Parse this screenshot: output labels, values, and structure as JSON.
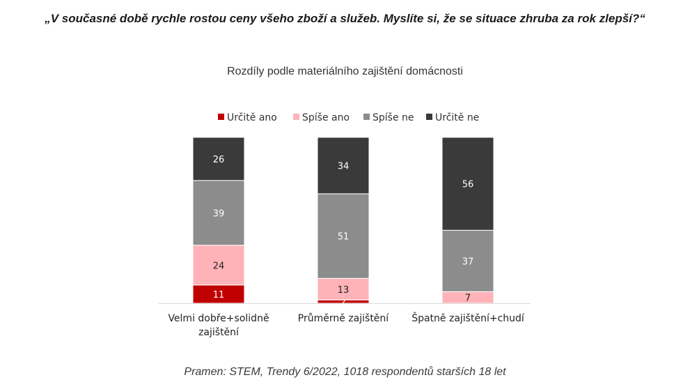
{
  "header": {
    "title": "„V současné době rychle rostou ceny všeho zboží a služeb. Myslíte si, že se situace zhruba za rok zlepší?“",
    "subtitle": "Rozdíly podle materiálního zajištění domácnosti"
  },
  "footer": {
    "source": "Pramen: STEM, Trendy 6/2022, 1018 respondentů starších 18 let"
  },
  "chart_data": {
    "type": "bar",
    "stacked": true,
    "categories": [
      [
        "Velmi dobře+solidně",
        "zajištění"
      ],
      [
        "Průměrně zajištění"
      ],
      [
        "Špatně zajištění+chudí"
      ]
    ],
    "series": [
      {
        "name": "Určitě ano",
        "color": "#c00000",
        "label_color": "#ffffff",
        "values": [
          11,
          2,
          0
        ]
      },
      {
        "name": "Spíše ano",
        "color": "#ffb3b8",
        "label_color": "#222222",
        "values": [
          24,
          13,
          7
        ]
      },
      {
        "name": "Spíše ne",
        "color": "#8c8c8c",
        "label_color": "#ffffff",
        "values": [
          39,
          51,
          37
        ]
      },
      {
        "name": "Určitě ne",
        "color": "#3a3a3a",
        "label_color": "#ffffff",
        "values": [
          26,
          34,
          56
        ]
      }
    ],
    "ylim": [
      0,
      100
    ],
    "legend": "top-center",
    "grid": false
  }
}
